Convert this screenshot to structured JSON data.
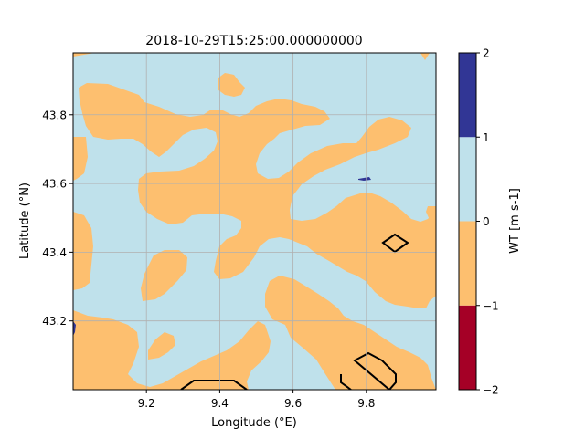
{
  "figure": {
    "title": "2018-10-29T15:25:00.000000000",
    "xlabel": "Longitude (°E)",
    "ylabel": "Latitude (°N)"
  },
  "map": {
    "lon_range": [
      9.0,
      9.99
    ],
    "lat_range": [
      43.0,
      43.98
    ],
    "grid": true,
    "x_ticks": [
      9.2,
      9.4,
      9.6,
      9.8
    ],
    "x_tick_labels": [
      "9.2",
      "9.4",
      "9.6",
      "9.8"
    ],
    "y_ticks": [
      43.2,
      43.4,
      43.6,
      43.8
    ],
    "y_tick_labels": [
      "43.2",
      "43.4",
      "43.6",
      "43.8"
    ],
    "field_colors": {
      "between_-1_and_0": "#fdbf6f",
      "between_0_and_1": "#bfe1eb",
      "between_1_and_2": "#313695",
      "between_-2_and_-1": "#a50026"
    },
    "contour_color": "#000000"
  },
  "colorbar": {
    "label": "WT [m s-1]",
    "levels": [
      -2,
      -1,
      0,
      1,
      2
    ],
    "tick_labels": [
      "−2",
      "−1",
      "0",
      "1",
      "2"
    ],
    "colors": [
      "#a50026",
      "#fdbf6f",
      "#bfe1eb",
      "#313695"
    ]
  }
}
